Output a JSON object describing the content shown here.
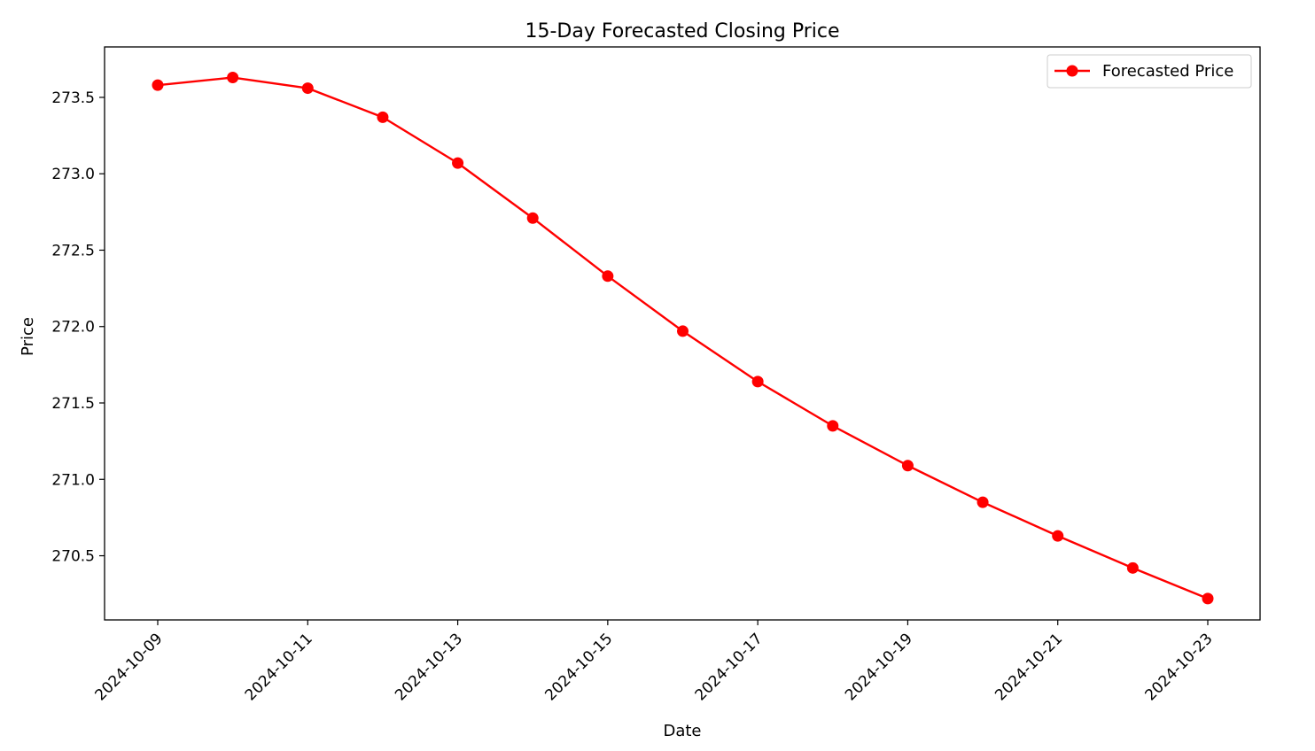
{
  "chart_data": {
    "type": "line",
    "title": "15-Day Forecasted Closing Price",
    "xlabel": "Date",
    "ylabel": "Price",
    "x": [
      "2024-10-09",
      "2024-10-10",
      "2024-10-11",
      "2024-10-12",
      "2024-10-13",
      "2024-10-14",
      "2024-10-15",
      "2024-10-16",
      "2024-10-17",
      "2024-10-18",
      "2024-10-19",
      "2024-10-20",
      "2024-10-21",
      "2024-10-22",
      "2024-10-23"
    ],
    "xticks": [
      "2024-10-09",
      "2024-10-11",
      "2024-10-13",
      "2024-10-15",
      "2024-10-17",
      "2024-10-19",
      "2024-10-21",
      "2024-10-23"
    ],
    "yticks": [
      270.5,
      271.0,
      271.5,
      272.0,
      272.5,
      273.0,
      273.5
    ],
    "ylim": [
      270.08,
      273.83
    ],
    "grid": false,
    "legend_position": "top-right",
    "series": [
      {
        "name": "Forecasted Price",
        "color": "#ff0000",
        "marker": "circle",
        "values": [
          273.58,
          273.63,
          273.56,
          273.37,
          273.07,
          272.71,
          272.33,
          271.97,
          271.64,
          271.35,
          271.09,
          270.85,
          270.63,
          270.42,
          270.22
        ]
      }
    ]
  }
}
